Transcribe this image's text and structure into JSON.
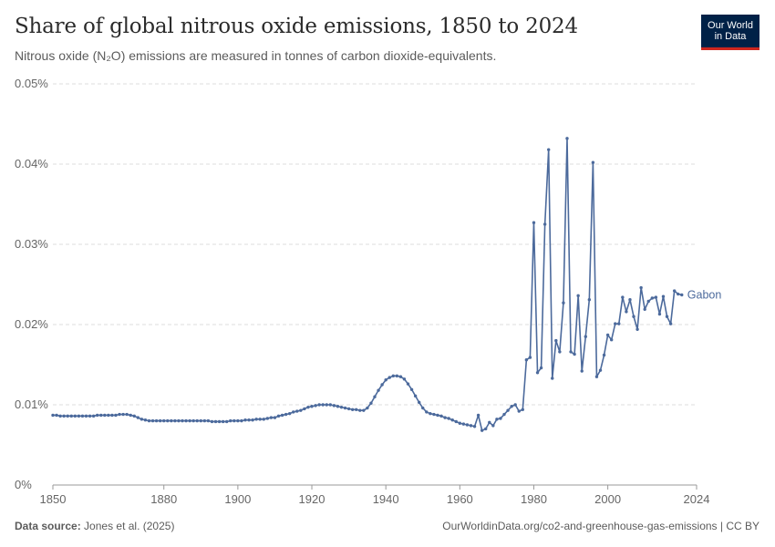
{
  "header": {
    "title": "Share of global nitrous oxide emissions, 1850 to 2024",
    "subtitle": "Nitrous oxide (N₂O) emissions are measured in tonnes of carbon dioxide-equivalents."
  },
  "logo": {
    "line1": "Our World",
    "line2": "in Data"
  },
  "footer": {
    "source_label": "Data source:",
    "source_value": "Jones et al. (2025)",
    "right": "OurWorldinData.org/co2-and-greenhouse-gas-emissions | CC BY"
  },
  "colors": {
    "series": "#4c6a9c",
    "grid": "#dddddd",
    "axis": "#999999",
    "logo_bg": "#002147",
    "logo_accent": "#ce261e"
  },
  "chart_data": {
    "type": "line",
    "title": "Share of global nitrous oxide emissions, 1850 to 2024",
    "xlabel": "",
    "ylabel": "",
    "xlim": [
      1850,
      2024
    ],
    "ylim": [
      0,
      0.05
    ],
    "y_ticks": [
      0,
      0.01,
      0.02,
      0.03,
      0.04,
      0.05
    ],
    "y_tick_labels": [
      "0%",
      "0.01%",
      "0.02%",
      "0.03%",
      "0.04%",
      "0.05%"
    ],
    "x_ticks": [
      1850,
      1880,
      1900,
      1920,
      1940,
      1960,
      1980,
      2000,
      2024
    ],
    "x_tick_labels": [
      "1850",
      "1880",
      "1900",
      "1920",
      "1940",
      "1960",
      "1980",
      "2000",
      "2024"
    ],
    "grid": true,
    "series": [
      {
        "name": "Gabon",
        "x_start": 1850,
        "values": [
          0.0087,
          0.0087,
          0.0086,
          0.0086,
          0.0086,
          0.0086,
          0.0086,
          0.0086,
          0.0086,
          0.0086,
          0.0086,
          0.0086,
          0.0087,
          0.0087,
          0.0087,
          0.0087,
          0.0087,
          0.0087,
          0.0088,
          0.0088,
          0.0088,
          0.0087,
          0.0086,
          0.0084,
          0.0082,
          0.0081,
          0.008,
          0.008,
          0.008,
          0.008,
          0.008,
          0.008,
          0.008,
          0.008,
          0.008,
          0.008,
          0.008,
          0.008,
          0.008,
          0.008,
          0.008,
          0.008,
          0.008,
          0.0079,
          0.0079,
          0.0079,
          0.0079,
          0.0079,
          0.008,
          0.008,
          0.008,
          0.008,
          0.0081,
          0.0081,
          0.0081,
          0.0082,
          0.0082,
          0.0082,
          0.0083,
          0.0084,
          0.0084,
          0.0086,
          0.0087,
          0.0088,
          0.0089,
          0.0091,
          0.0092,
          0.0093,
          0.0095,
          0.0097,
          0.0098,
          0.0099,
          0.01,
          0.01,
          0.01,
          0.01,
          0.0099,
          0.0098,
          0.0097,
          0.0096,
          0.0095,
          0.0094,
          0.0094,
          0.0093,
          0.0093,
          0.0096,
          0.0102,
          0.011,
          0.0118,
          0.0125,
          0.0131,
          0.0134,
          0.0136,
          0.0136,
          0.0135,
          0.0132,
          0.0126,
          0.0119,
          0.0111,
          0.0103,
          0.0096,
          0.0091,
          0.0089,
          0.0088,
          0.0087,
          0.0086,
          0.0084,
          0.0083,
          0.0081,
          0.0079,
          0.0077,
          0.0076,
          0.0075,
          0.0074,
          0.0073,
          0.0087,
          0.0068,
          0.007,
          0.0078,
          0.0074,
          0.0082,
          0.0083,
          0.0088,
          0.0093,
          0.0098,
          0.01,
          0.0092,
          0.0094,
          0.0156,
          0.0159,
          0.0327,
          0.014,
          0.0146,
          0.0325,
          0.0418,
          0.0133,
          0.018,
          0.0166,
          0.0227,
          0.0432,
          0.0166,
          0.0163,
          0.0236,
          0.0142,
          0.0185,
          0.0231,
          0.0402,
          0.0135,
          0.0143,
          0.0162,
          0.0187,
          0.0181,
          0.0201,
          0.0201,
          0.0234,
          0.0216,
          0.0231,
          0.021,
          0.0194,
          0.0246,
          0.0219,
          0.0229,
          0.0233,
          0.0234,
          0.0213,
          0.0235,
          0.021,
          0.0201,
          0.0242,
          0.0238,
          0.0237
        ]
      }
    ]
  }
}
